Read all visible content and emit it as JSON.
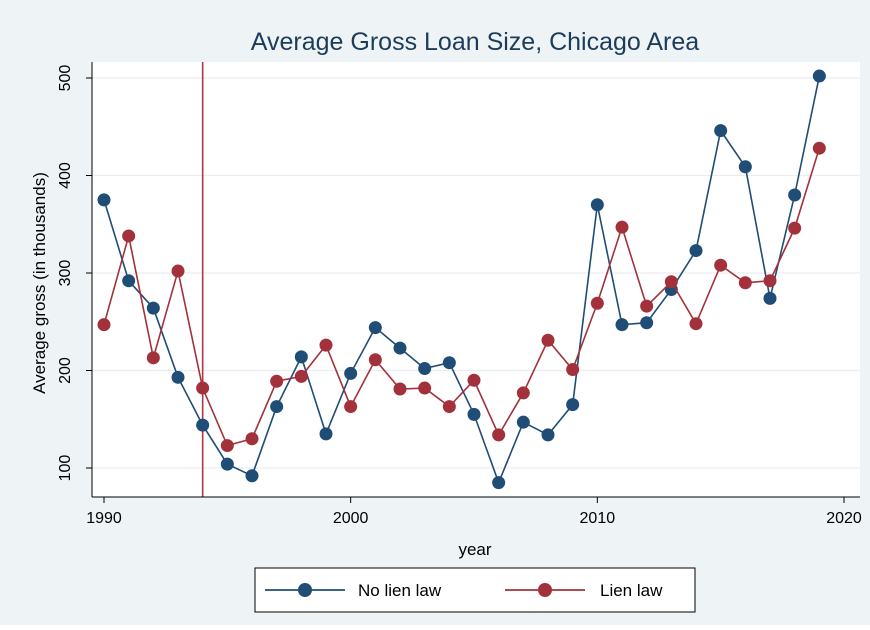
{
  "chart_data": {
    "type": "line",
    "title": "Average Gross Loan Size, Chicago Area",
    "xlabel": "year",
    "ylabel": "Average gross (in thousands)",
    "x": [
      1990,
      1991,
      1992,
      1993,
      1994,
      1995,
      1996,
      1997,
      1998,
      1999,
      2000,
      2001,
      2002,
      2003,
      2004,
      2005,
      2006,
      2007,
      2008,
      2009,
      2010,
      2011,
      2012,
      2013,
      2014,
      2015,
      2016,
      2017,
      2018,
      2019
    ],
    "xlim": [
      1990,
      2020
    ],
    "ylim": [
      85,
      510
    ],
    "xticks": [
      1990,
      2000,
      2010,
      2020
    ],
    "yticks": [
      100,
      200,
      300,
      400,
      500
    ],
    "grid": true,
    "legend_position": "bottom",
    "reference_line": {
      "x": 1994,
      "color": "#b2344a"
    },
    "series": [
      {
        "name": "No lien law",
        "color": "#1f4d75",
        "values": [
          375,
          292,
          264,
          193,
          144,
          104,
          92,
          163,
          214,
          135,
          197,
          244,
          223,
          202,
          208,
          155,
          85,
          147,
          134,
          165,
          370,
          247,
          249,
          283,
          323,
          446,
          409,
          274,
          380,
          502
        ]
      },
      {
        "name": "Lien law",
        "color": "#a3313b",
        "values": [
          247,
          338,
          213,
          302,
          182,
          123,
          130,
          189,
          194,
          226,
          163,
          211,
          181,
          182,
          163,
          190,
          134,
          177,
          231,
          201,
          269,
          347,
          266,
          291,
          248,
          308,
          290,
          292,
          346,
          428
        ]
      }
    ]
  }
}
